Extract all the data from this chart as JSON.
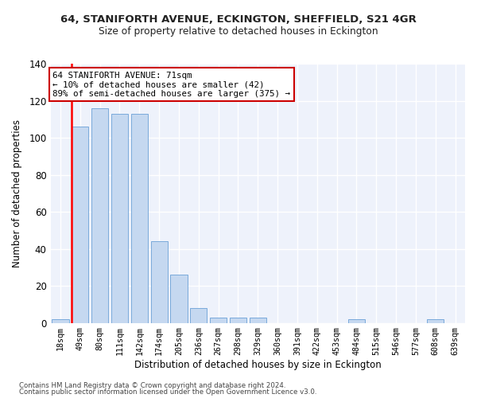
{
  "title": "64, STANIFORTH AVENUE, ECKINGTON, SHEFFIELD, S21 4GR",
  "subtitle": "Size of property relative to detached houses in Eckington",
  "xlabel": "Distribution of detached houses by size in Eckington",
  "ylabel": "Number of detached properties",
  "bar_color": "#c5d8f0",
  "bar_edge_color": "#7aaadb",
  "background_color": "#eef2fb",
  "grid_color": "#ffffff",
  "fig_background": "#ffffff",
  "categories": [
    "18sqm",
    "49sqm",
    "80sqm",
    "111sqm",
    "142sqm",
    "174sqm",
    "205sqm",
    "236sqm",
    "267sqm",
    "298sqm",
    "329sqm",
    "360sqm",
    "391sqm",
    "422sqm",
    "453sqm",
    "484sqm",
    "515sqm",
    "546sqm",
    "577sqm",
    "608sqm",
    "639sqm"
  ],
  "values": [
    2,
    106,
    116,
    113,
    113,
    44,
    26,
    8,
    3,
    3,
    3,
    0,
    0,
    0,
    0,
    2,
    0,
    0,
    0,
    2,
    0
  ],
  "ylim": [
    0,
    140
  ],
  "yticks": [
    0,
    20,
    40,
    60,
    80,
    100,
    120,
    140
  ],
  "red_line_bin_index": 1,
  "annotation_text": "64 STANIFORTH AVENUE: 71sqm\n← 10% of detached houses are smaller (42)\n89% of semi-detached houses are larger (375) →",
  "annotation_box_facecolor": "#ffffff",
  "annotation_box_edgecolor": "#cc0000",
  "footer_line1": "Contains HM Land Registry data © Crown copyright and database right 2024.",
  "footer_line2": "Contains public sector information licensed under the Open Government Licence v3.0."
}
